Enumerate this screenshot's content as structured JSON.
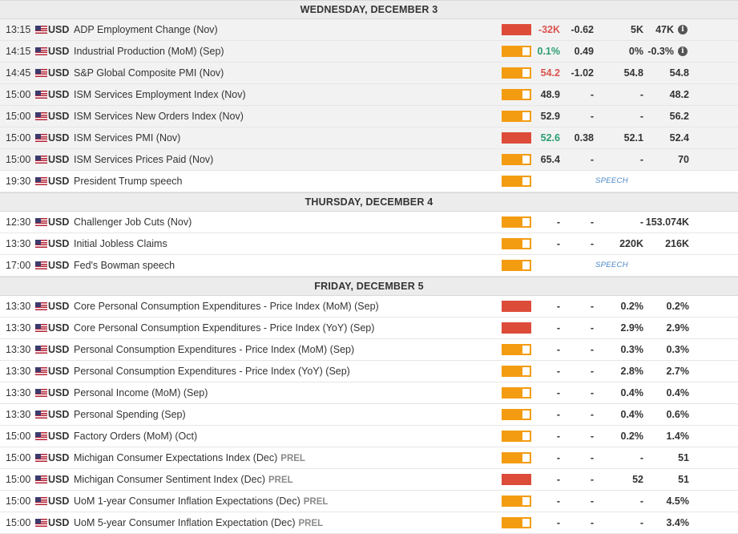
{
  "days": [
    {
      "header": "WEDNESDAY, DECEMBER 3",
      "events": [
        {
          "time": "13:15",
          "currency": "USD",
          "event": "ADP Employment Change (Nov)",
          "impact": "high",
          "actual": "-32K",
          "actual_color": "red",
          "deviation": "-0.62",
          "consensus": "5K",
          "previous": "47K",
          "info": true,
          "shaded": true
        },
        {
          "time": "14:15",
          "currency": "USD",
          "event": "Industrial Production (MoM) (Sep)",
          "impact": "medium",
          "actual": "0.1%",
          "actual_color": "green",
          "deviation": "0.49",
          "consensus": "0%",
          "previous": "-0.3%",
          "info": true,
          "shaded": true
        },
        {
          "time": "14:45",
          "currency": "USD",
          "event": "S&P Global Composite PMI (Nov)",
          "impact": "medium",
          "actual": "54.2",
          "actual_color": "red",
          "deviation": "-1.02",
          "consensus": "54.8",
          "previous": "54.8",
          "shaded": true
        },
        {
          "time": "15:00",
          "currency": "USD",
          "event": "ISM Services Employment Index (Nov)",
          "impact": "medium",
          "actual": "48.9",
          "actual_color": "",
          "deviation": "-",
          "consensus": "-",
          "previous": "48.2",
          "shaded": true
        },
        {
          "time": "15:00",
          "currency": "USD",
          "event": "ISM Services New Orders Index (Nov)",
          "impact": "medium",
          "actual": "52.9",
          "actual_color": "",
          "deviation": "-",
          "consensus": "-",
          "previous": "56.2",
          "shaded": true
        },
        {
          "time": "15:00",
          "currency": "USD",
          "event": "ISM Services PMI (Nov)",
          "impact": "high",
          "actual": "52.6",
          "actual_color": "green",
          "deviation": "0.38",
          "consensus": "52.1",
          "previous": "52.4",
          "shaded": true
        },
        {
          "time": "15:00",
          "currency": "USD",
          "event": "ISM Services Prices Paid (Nov)",
          "impact": "medium",
          "actual": "65.4",
          "actual_color": "",
          "deviation": "-",
          "consensus": "-",
          "previous": "70",
          "shaded": true
        },
        {
          "time": "19:30",
          "currency": "USD",
          "event": "President Trump speech",
          "impact": "medium",
          "speech": "SPEECH"
        }
      ]
    },
    {
      "header": "THURSDAY, DECEMBER 4",
      "events": [
        {
          "time": "12:30",
          "currency": "USD",
          "event": "Challenger Job Cuts (Nov)",
          "impact": "medium",
          "actual": "-",
          "deviation": "-",
          "consensus": "-",
          "previous": "153.074K"
        },
        {
          "time": "13:30",
          "currency": "USD",
          "event": "Initial Jobless Claims",
          "impact": "medium",
          "actual": "-",
          "deviation": "-",
          "consensus": "220K",
          "previous": "216K"
        },
        {
          "time": "17:00",
          "currency": "USD",
          "event": "Fed's Bowman speech",
          "impact": "medium",
          "speech": "SPEECH"
        }
      ]
    },
    {
      "header": "FRIDAY, DECEMBER 5",
      "events": [
        {
          "time": "13:30",
          "currency": "USD",
          "event": "Core Personal Consumption Expenditures - Price Index (MoM) (Sep)",
          "impact": "high",
          "actual": "-",
          "deviation": "-",
          "consensus": "0.2%",
          "previous": "0.2%"
        },
        {
          "time": "13:30",
          "currency": "USD",
          "event": "Core Personal Consumption Expenditures - Price Index (YoY) (Sep)",
          "impact": "high",
          "actual": "-",
          "deviation": "-",
          "consensus": "2.9%",
          "previous": "2.9%"
        },
        {
          "time": "13:30",
          "currency": "USD",
          "event": "Personal Consumption Expenditures - Price Index (MoM) (Sep)",
          "impact": "medium",
          "actual": "-",
          "deviation": "-",
          "consensus": "0.3%",
          "previous": "0.3%"
        },
        {
          "time": "13:30",
          "currency": "USD",
          "event": "Personal Consumption Expenditures - Price Index (YoY) (Sep)",
          "impact": "medium",
          "actual": "-",
          "deviation": "-",
          "consensus": "2.8%",
          "previous": "2.7%"
        },
        {
          "time": "13:30",
          "currency": "USD",
          "event": "Personal Income (MoM) (Sep)",
          "impact": "medium",
          "actual": "-",
          "deviation": "-",
          "consensus": "0.4%",
          "previous": "0.4%"
        },
        {
          "time": "13:30",
          "currency": "USD",
          "event": "Personal Spending (Sep)",
          "impact": "medium",
          "actual": "-",
          "deviation": "-",
          "consensus": "0.4%",
          "previous": "0.6%"
        },
        {
          "time": "15:00",
          "currency": "USD",
          "event": "Factory Orders (MoM) (Oct)",
          "impact": "medium",
          "actual": "-",
          "deviation": "-",
          "consensus": "0.2%",
          "previous": "1.4%"
        },
        {
          "time": "15:00",
          "currency": "USD",
          "event": "Michigan Consumer Expectations Index (Dec)",
          "tag": "PREL",
          "impact": "medium",
          "actual": "-",
          "deviation": "-",
          "consensus": "-",
          "previous": "51"
        },
        {
          "time": "15:00",
          "currency": "USD",
          "event": "Michigan Consumer Sentiment Index (Dec)",
          "tag": "PREL",
          "impact": "high",
          "actual": "-",
          "deviation": "-",
          "consensus": "52",
          "previous": "51"
        },
        {
          "time": "15:00",
          "currency": "USD",
          "event": "UoM 1-year Consumer Inflation Expectations (Dec)",
          "tag": "PREL",
          "impact": "medium",
          "actual": "-",
          "deviation": "-",
          "consensus": "-",
          "previous": "4.5%"
        },
        {
          "time": "15:00",
          "currency": "USD",
          "event": "UoM 5-year Consumer Inflation Expectation (Dec)",
          "tag": "PREL",
          "impact": "medium",
          "actual": "-",
          "deviation": "-",
          "consensus": "-",
          "previous": "3.4%"
        }
      ]
    }
  ],
  "colors": {
    "impact_high": "#dd4b39",
    "impact_medium": "#f39c12",
    "actual_red": "#d9534f",
    "actual_green": "#2a9d70"
  },
  "icons": {
    "flag": "us-flag-icon",
    "info": "info-icon"
  },
  "info_glyph": "i"
}
